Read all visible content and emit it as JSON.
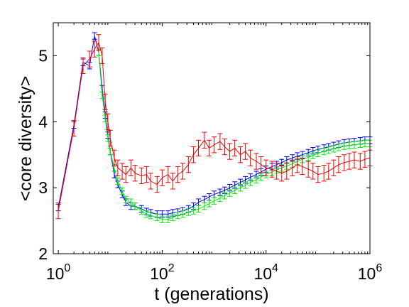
{
  "chart_data": {
    "type": "line",
    "xlabel": "t (generations)",
    "ylabel": "<core diversity>",
    "xscale": "log",
    "xlim": [
      0.8,
      1000000
    ],
    "ylim": [
      2,
      5.5
    ],
    "x_ticks": [
      {
        "value": 1,
        "base": "10",
        "exp": "0"
      },
      {
        "value": 100,
        "base": "10",
        "exp": "2"
      },
      {
        "value": 10000,
        "base": "10",
        "exp": "4"
      },
      {
        "value": 1000000,
        "base": "10",
        "exp": "6"
      }
    ],
    "y_ticks": [
      {
        "value": 2,
        "label": "2"
      },
      {
        "value": 3,
        "label": "3"
      },
      {
        "value": 4,
        "label": "4"
      },
      {
        "value": 5,
        "label": "5"
      }
    ],
    "grid": false,
    "legend": "none",
    "series": [
      {
        "color": "#0000ff",
        "x": [
          1,
          2,
          3,
          4,
          5,
          6,
          7,
          8,
          9,
          10,
          12,
          14,
          17,
          20,
          25,
          30,
          40,
          50,
          60,
          80,
          100,
          130,
          160,
          200,
          250,
          320,
          400,
          500,
          650,
          800,
          1000,
          1300,
          1600,
          2000,
          2500,
          3200,
          4000,
          5000,
          6500,
          8000,
          10000,
          13000,
          16000,
          20000,
          25000,
          32000,
          40000,
          50000,
          65000,
          80000,
          100000,
          130000,
          160000,
          200000,
          250000,
          320000,
          400000,
          500000,
          650000,
          800000,
          1000000
        ],
        "y": [
          2.7,
          3.95,
          4.9,
          4.85,
          5.3,
          5.05,
          4.5,
          4.1,
          3.8,
          3.55,
          3.2,
          3.05,
          2.9,
          2.78,
          2.72,
          2.72,
          2.68,
          2.64,
          2.62,
          2.6,
          2.6,
          2.6,
          2.62,
          2.63,
          2.65,
          2.68,
          2.72,
          2.78,
          2.82,
          2.86,
          2.9,
          2.93,
          2.96,
          3.0,
          3.04,
          3.08,
          3.12,
          3.16,
          3.2,
          3.24,
          3.28,
          3.32,
          3.35,
          3.38,
          3.42,
          3.45,
          3.48,
          3.5,
          3.53,
          3.56,
          3.58,
          3.6,
          3.62,
          3.64,
          3.66,
          3.68,
          3.69,
          3.7,
          3.71,
          3.72,
          3.72
        ],
        "err": 0.05
      },
      {
        "color": "#00ee00",
        "x": [
          6,
          7,
          8,
          9,
          10,
          12,
          14,
          17,
          20,
          25,
          30,
          40,
          50,
          60,
          80,
          100,
          130,
          160,
          200,
          250,
          320,
          400,
          500,
          650,
          800,
          1000,
          1300,
          1600,
          2000,
          2500,
          3200,
          4000,
          5000,
          6500,
          8000,
          10000,
          13000,
          16000,
          20000,
          25000,
          32000,
          40000,
          50000,
          65000,
          80000,
          100000,
          130000,
          160000,
          200000,
          250000,
          320000,
          400000,
          500000,
          650000,
          800000,
          1000000
        ],
        "y": [
          5.05,
          4.4,
          4.05,
          3.75,
          3.55,
          3.3,
          3.1,
          2.95,
          2.82,
          2.78,
          2.72,
          2.65,
          2.6,
          2.58,
          2.55,
          2.52,
          2.52,
          2.55,
          2.58,
          2.6,
          2.63,
          2.65,
          2.68,
          2.72,
          2.76,
          2.8,
          2.84,
          2.88,
          2.92,
          2.96,
          3.0,
          3.04,
          3.08,
          3.12,
          3.16,
          3.2,
          3.24,
          3.27,
          3.3,
          3.33,
          3.36,
          3.4,
          3.43,
          3.46,
          3.49,
          3.52,
          3.55,
          3.57,
          3.59,
          3.61,
          3.63,
          3.64,
          3.65,
          3.66,
          3.67,
          3.67
        ],
        "err": 0.05
      },
      {
        "color": "#ee0000",
        "x": [
          1,
          2,
          3,
          4,
          5,
          6,
          7,
          8,
          9,
          10,
          12,
          14,
          17,
          20,
          25,
          30,
          40,
          50,
          60,
          80,
          100,
          130,
          160,
          200,
          250,
          320,
          400,
          500,
          650,
          800,
          1000,
          1300,
          1600,
          2000,
          2500,
          3200,
          4000,
          5000,
          6500,
          8000,
          10000,
          13000,
          16000,
          20000,
          25000,
          32000,
          40000,
          50000,
          65000,
          80000,
          100000,
          130000,
          160000,
          200000,
          250000,
          320000,
          400000,
          500000,
          650000,
          800000,
          1000000
        ],
        "y": [
          2.65,
          3.9,
          4.85,
          4.95,
          5.1,
          5.2,
          5.0,
          4.3,
          4.0,
          3.75,
          3.45,
          3.3,
          3.25,
          3.2,
          3.3,
          3.22,
          3.18,
          3.2,
          3.1,
          3.05,
          3.15,
          3.2,
          3.1,
          3.2,
          3.25,
          3.35,
          3.5,
          3.6,
          3.72,
          3.6,
          3.65,
          3.7,
          3.62,
          3.55,
          3.6,
          3.5,
          3.55,
          3.45,
          3.4,
          3.35,
          3.3,
          3.28,
          3.25,
          3.22,
          3.25,
          3.3,
          3.35,
          3.32,
          3.28,
          3.25,
          3.2,
          3.22,
          3.25,
          3.3,
          3.35,
          3.38,
          3.4,
          3.42,
          3.4,
          3.43,
          3.45
        ],
        "err": 0.12
      }
    ]
  }
}
